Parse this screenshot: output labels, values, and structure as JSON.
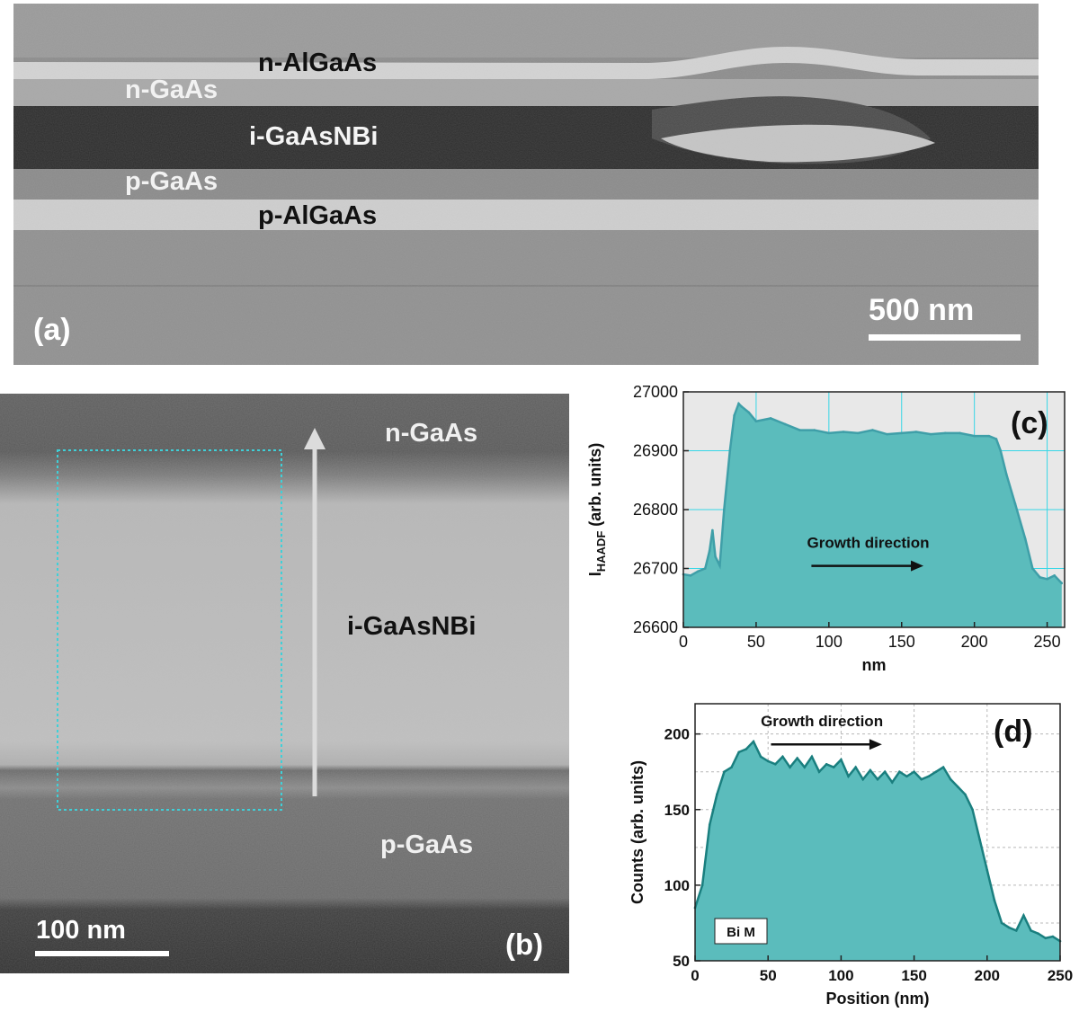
{
  "panel_a": {
    "label": "(a)",
    "layers": {
      "n_algaas": "n-AlGaAs",
      "n_gaas": "n-GaAs",
      "i_gaasnbi": "i-GaAsNBi",
      "p_gaas": "p-GaAs",
      "p_algaas": "p-AlGaAs"
    },
    "scale_bar": "500 nm"
  },
  "panel_b": {
    "label": "(b)",
    "layers": {
      "n_gaas": "n-GaAs",
      "i_gaasnbi": "i-GaAsNBi",
      "p_gaas": "p-GaAs"
    },
    "scale_bar": "100 nm"
  },
  "chart_data": [
    {
      "panel": "(c)",
      "type": "area",
      "title": "",
      "xlabel": "nm",
      "ylabel_main": "I",
      "ylabel_sub": "HAADF",
      "ylabel_rest": " (arb. units)",
      "xlim": [
        0,
        262
      ],
      "ylim": [
        26600,
        27000
      ],
      "xticks": [
        0,
        50,
        100,
        150,
        200,
        250
      ],
      "yticks": [
        26600,
        26700,
        26800,
        26900,
        27000
      ],
      "grid": true,
      "annotation": "Growth direction",
      "x": [
        0,
        5,
        10,
        15,
        18,
        20,
        22,
        25,
        28,
        32,
        35,
        38,
        40,
        45,
        50,
        60,
        70,
        80,
        90,
        100,
        110,
        120,
        130,
        140,
        150,
        160,
        170,
        180,
        190,
        200,
        210,
        215,
        218,
        222,
        228,
        235,
        240,
        245,
        250,
        255,
        260
      ],
      "y": [
        26690,
        26688,
        26695,
        26700,
        26730,
        26765,
        26720,
        26705,
        26800,
        26900,
        26960,
        26980,
        26975,
        26965,
        26950,
        26955,
        26945,
        26935,
        26935,
        26930,
        26932,
        26930,
        26935,
        26928,
        26930,
        26932,
        26928,
        26930,
        26930,
        26925,
        26925,
        26920,
        26900,
        26860,
        26810,
        26750,
        26700,
        26685,
        26682,
        26688,
        26675
      ]
    },
    {
      "panel": "(d)",
      "type": "area",
      "title": "",
      "xlabel": "Position (nm)",
      "ylabel": "Counts (arb. units)",
      "xlim": [
        0,
        250
      ],
      "ylim": [
        50,
        220
      ],
      "xticks": [
        0,
        50,
        100,
        150,
        200,
        250
      ],
      "yticks": [
        50,
        100,
        150,
        200
      ],
      "grid": true,
      "annotation": "Growth direction",
      "legend": "Bi M",
      "x": [
        0,
        5,
        10,
        15,
        20,
        25,
        30,
        35,
        40,
        45,
        50,
        55,
        60,
        65,
        70,
        75,
        80,
        85,
        90,
        95,
        100,
        105,
        110,
        115,
        120,
        125,
        130,
        135,
        140,
        145,
        150,
        155,
        160,
        165,
        170,
        175,
        180,
        185,
        190,
        195,
        200,
        205,
        210,
        215,
        220,
        225,
        230,
        235,
        240,
        245,
        250
      ],
      "y": [
        85,
        100,
        140,
        160,
        175,
        178,
        188,
        190,
        195,
        185,
        182,
        180,
        185,
        178,
        184,
        178,
        185,
        175,
        180,
        178,
        183,
        172,
        178,
        170,
        176,
        170,
        175,
        168,
        175,
        172,
        175,
        170,
        172,
        175,
        178,
        170,
        165,
        160,
        150,
        130,
        110,
        90,
        75,
        72,
        70,
        80,
        70,
        68,
        65,
        66,
        63
      ]
    }
  ]
}
